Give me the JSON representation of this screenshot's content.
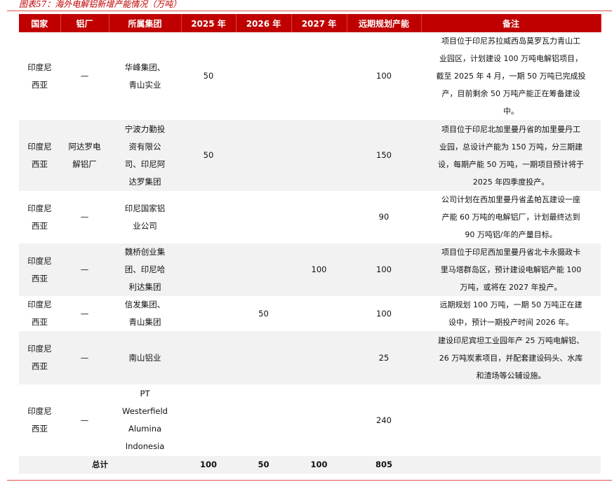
{
  "title": "图表57：海外电解铝新增产能情况（万吨）",
  "headers": [
    "国家",
    "铝厂",
    "所属集团",
    "2025 年",
    "2026 年",
    "2027 年",
    "远期规划产能",
    "备注"
  ],
  "rows": [
    {
      "country": "印度尼\n西亚",
      "plant": "—",
      "group": "华峰集团、\n青山实业",
      "y2025": "50",
      "y2026": "",
      "y2027": "",
      "longterm": "100",
      "note": "项目位于印尼苏拉威西岛莫罗瓦力青山工\n业园区，计划建设 100 万吨电解铝项目，\n截至 2025 年 4 月，一期 50 万吨已完成投\n产，目前剩余 50 万吨产能正在筹备建设\n中。"
    },
    {
      "country": "印度尼\n西亚",
      "plant": "阿达罗电\n解铝厂",
      "group": "宁波力勤投\n资有限公\n司、印尼阿\n达罗集团",
      "y2025": "50",
      "y2026": "",
      "y2027": "",
      "longterm": "150",
      "note": "项目位于印尼北加里曼丹省的加里曼丹工\n业园，总设计产能为 150 万吨，分三期建\n设，每期产能 50 万吨，一期项目预计将于\n2025 年四季度投产。"
    },
    {
      "country": "印度尼\n西亚",
      "plant": "—",
      "group": "印尼国家铝\n业公司",
      "y2025": "",
      "y2026": "",
      "y2027": "",
      "longterm": "90",
      "note": "公司计划在西加里曼丹省孟帕瓦建设一座\n产能 60 万吨的电解铝厂，计划最终达到\n90 万吨铝/年的产量目标。"
    },
    {
      "country": "印度尼\n西亚",
      "plant": "—",
      "group": "魏桥创业集\n团、印尼哈\n利达集团",
      "y2025": "",
      "y2026": "",
      "y2027": "100",
      "longterm": "100",
      "note": "项目位于印尼西加里曼丹省北卡永摄政卡\n里马塔群岛区，预计建设电解铝产能 100\n万吨，或将在 2027 年投产。"
    },
    {
      "country": "印度尼\n西亚",
      "plant": "—",
      "group": "信发集团、\n青山集团",
      "y2025": "",
      "y2026": "50",
      "y2027": "",
      "longterm": "100",
      "note": "远期规划 100 万吨，一期 50 万吨正在建\n设中，预计一期投产时间 2026 年。"
    },
    {
      "country": "印度尼\n西亚",
      "plant": "—",
      "group": "南山铝业",
      "y2025": "",
      "y2026": "",
      "y2027": "",
      "longterm": "25",
      "note": "建设印尼宾坦工业园年产 25 万吨电解铝、\n26 万吨炭素项目，并配套建设码头、水库\n和渣场等公辅设施。"
    },
    {
      "country": "印度尼\n西亚",
      "plant": "—",
      "group": "PT\nWesterfield\nAlumina\nIndonesia",
      "y2025": "",
      "y2026": "",
      "y2027": "",
      "longterm": "240",
      "note": ""
    }
  ],
  "total": {
    "label": "总计",
    "y2025": "100",
    "y2026": "50",
    "y2027": "100",
    "longterm": "805"
  },
  "colors": {
    "header_bg": "#c00000",
    "stripe": "#f2f2f2"
  }
}
